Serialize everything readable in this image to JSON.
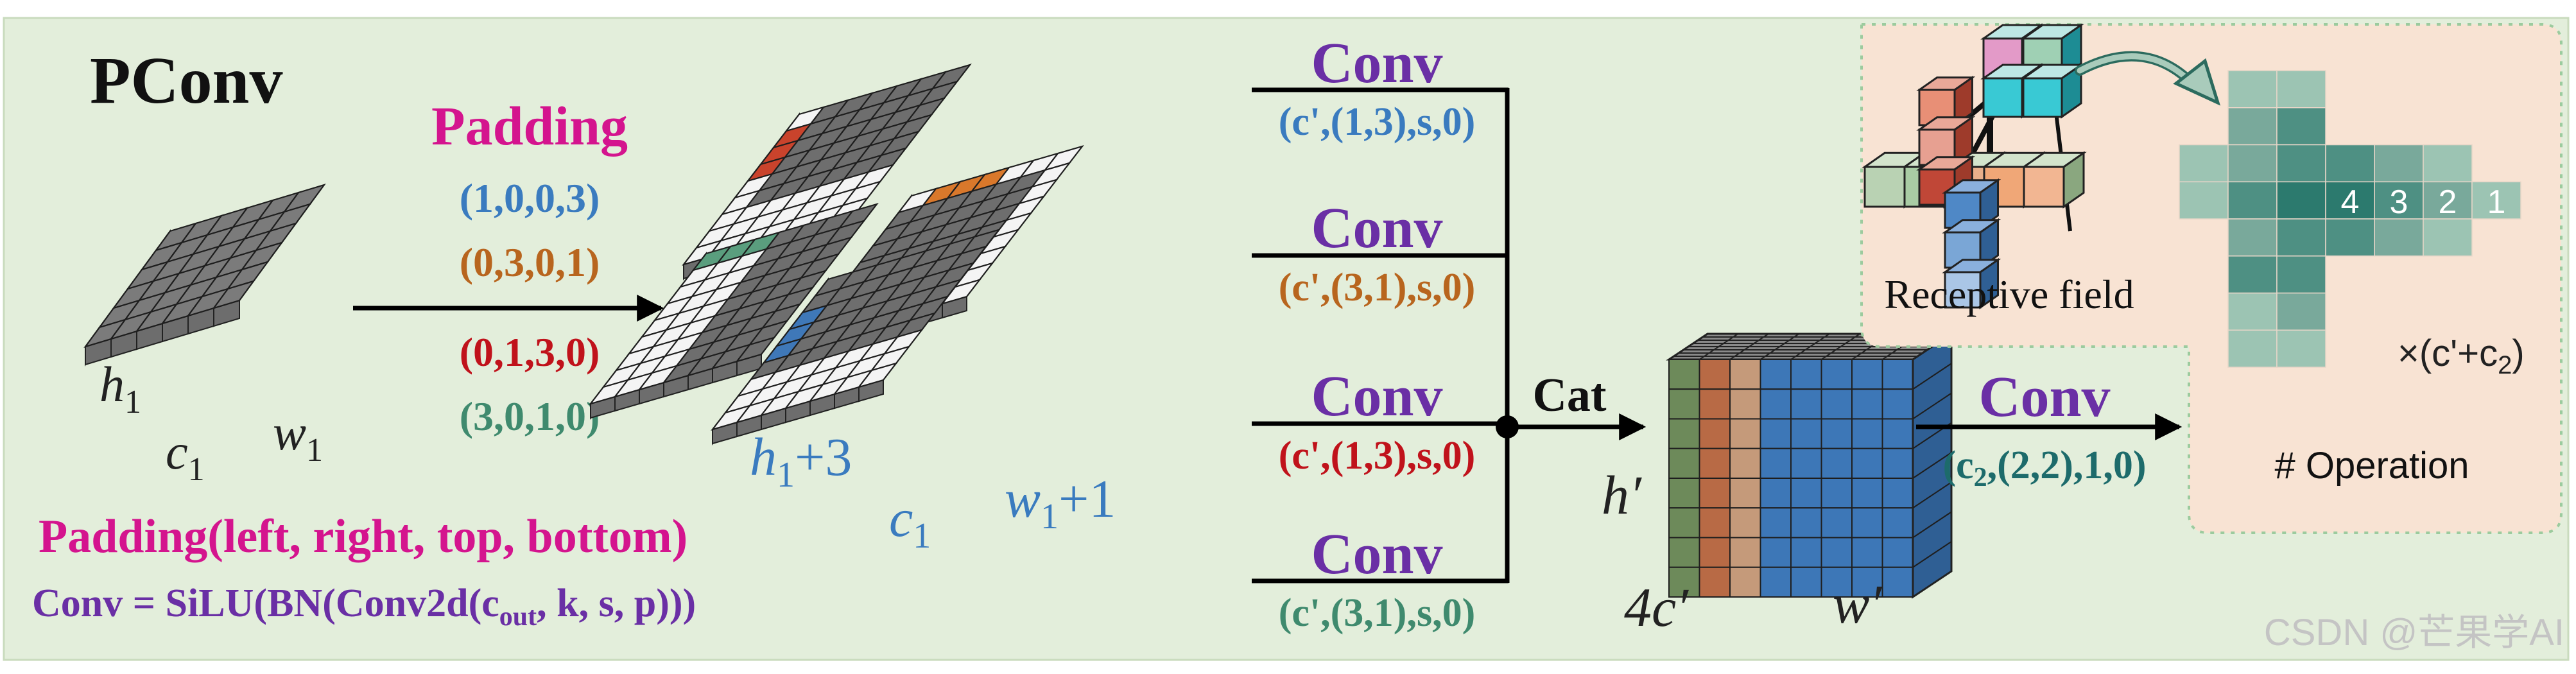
{
  "title": "PConv",
  "padding": {
    "heading": "Padding",
    "tuples": [
      {
        "text": "(1,0,0,3)",
        "color": "#3a7bbf"
      },
      {
        "text": "(0,3,0,1)",
        "color": "#b8651e"
      },
      {
        "text": "(0,1,3,0)",
        "color": "#c0121b"
      },
      {
        "text": "(3,0,1,0)",
        "color": "#3f8a6e"
      }
    ]
  },
  "input_labels": {
    "h": "h",
    "h_sub": "1",
    "w": "w",
    "w_sub": "1",
    "c": "c",
    "c_sub": "1"
  },
  "padded_labels": {
    "h": "h",
    "h_sub": "1",
    "h_suffix": "+3",
    "w": "w",
    "w_sub": "1",
    "w_suffix": "+1",
    "c": "c",
    "c_sub": "1"
  },
  "legend": {
    "padding_def": "Padding(left, right, top, bottom)",
    "conv_def_prefix": "Conv = SiLU(BN(Conv2d(c",
    "conv_def_sub": "out",
    "conv_def_suffix": ", k, s, p)))"
  },
  "conv_branches": [
    {
      "label": "Conv",
      "params": "(c',(1,3),s,0)",
      "color": "#3a7bbf"
    },
    {
      "label": "Conv",
      "params": "(c',(3,1),s,0)",
      "color": "#b8651e"
    },
    {
      "label": "Conv",
      "params": "(c',(1,3),s,0)",
      "color": "#c0121b"
    },
    {
      "label": "Conv",
      "params": "(c',(3,1),s,0)",
      "color": "#3f8a6e"
    }
  ],
  "cat_label": "Cat",
  "output_labels": {
    "h": "h′",
    "c": "4c′",
    "w": "w′"
  },
  "final_conv": {
    "label": "Conv",
    "params_prefix": "(c",
    "params_sub": "2",
    "params_suffix": ",(2,2),1,0)"
  },
  "inset": {
    "receptive_label": "Receptive field",
    "numbers": [
      "4",
      "3",
      "2",
      "1"
    ],
    "multiplier_prefix": "×(c'+c",
    "multiplier_sub": "2",
    "multiplier_suffix": ")",
    "operation_label": "# Operation"
  },
  "watermark": "CSDN @芒果学AI",
  "colors": {
    "background": "#e3eedb",
    "title": "#111111",
    "padding_heading": "#d4148e",
    "conv_label": "#6a2fa5",
    "final_conv_params": "#1d6b6b",
    "inset_background": "#f8e3d3",
    "teal_dark": "#2c7a6e",
    "teal_light": "#9cc4b3"
  }
}
